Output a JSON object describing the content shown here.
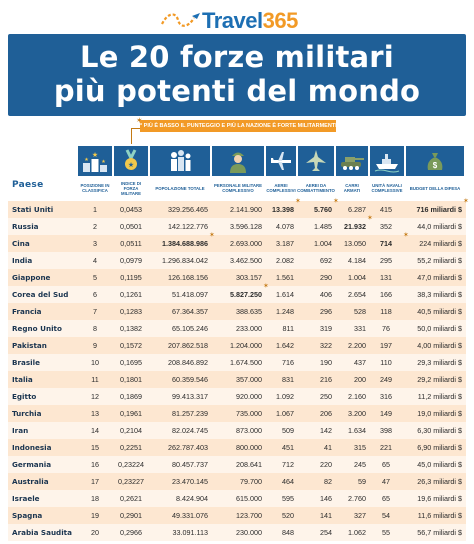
{
  "brand": {
    "name": "Travel",
    "number": "365"
  },
  "title": {
    "line1": "Le 20 forze militari",
    "line2": "più potenti del mondo"
  },
  "note": "* PIÙ È BASSO IL PUNTEGGIO E PIÙ LA NAZIONE È FORTE MILITARMENTE",
  "paese_label": "Paese",
  "icons": [
    "podium-icon",
    "medal-icon",
    "population-icon",
    "soldier-icon",
    "airplane-icon",
    "fighter-jet-icon",
    "tank-icon",
    "ship-icon",
    "money-bag-icon"
  ],
  "columns": [
    "Posizione in classifica",
    "Indice di forza militare",
    "Popolazione totale",
    "Personale militare complessivo",
    "Aerei complessivi",
    "Aerei da combattimento",
    "Carri armati",
    "Unità navali complessive",
    "Budget della difesa"
  ],
  "colors": {
    "primary": "#1f5f97",
    "accent": "#f29a26",
    "row_odd": "#fde7d1",
    "row_even": "#fef4ea"
  },
  "rows": [
    {
      "country": "Stati Uniti",
      "rank": "1",
      "index": "0,0453",
      "population": "329.256.465",
      "personnel": "2.141.900",
      "aircraft": "13.398",
      "combat": "5.760",
      "tanks": "6.287",
      "naval": "415",
      "budget": "716 miliardi $"
    },
    {
      "country": "Russia",
      "rank": "2",
      "index": "0,0501",
      "population": "142.122.776",
      "personnel": "3.596.128",
      "aircraft": "4.078",
      "combat": "1.485",
      "tanks": "21.932",
      "naval": "352",
      "budget": "44,0 miliardi $"
    },
    {
      "country": "Cina",
      "rank": "3",
      "index": "0,0511",
      "population": "1.384.688.986",
      "personnel": "2.693.000",
      "aircraft": "3.187",
      "combat": "1.004",
      "tanks": "13.050",
      "naval": "714",
      "budget": "224 miliardi $"
    },
    {
      "country": "India",
      "rank": "4",
      "index": "0,0979",
      "population": "1.296.834.042",
      "personnel": "3.462.500",
      "aircraft": "2.082",
      "combat": "692",
      "tanks": "4.184",
      "naval": "295",
      "budget": "55,2 miliardi $"
    },
    {
      "country": "Giappone",
      "rank": "5",
      "index": "0,1195",
      "population": "126.168.156",
      "personnel": "303.157",
      "aircraft": "1.561",
      "combat": "290",
      "tanks": "1.004",
      "naval": "131",
      "budget": "47,0 miliardi $"
    },
    {
      "country": "Corea del Sud",
      "rank": "6",
      "index": "0,1261",
      "population": "51.418.097",
      "personnel": "5.827.250",
      "aircraft": "1.614",
      "combat": "406",
      "tanks": "2.654",
      "naval": "166",
      "budget": "38,3 miliardi $"
    },
    {
      "country": "Francia",
      "rank": "7",
      "index": "0,1283",
      "population": "67.364.357",
      "personnel": "388.635",
      "aircraft": "1.248",
      "combat": "296",
      "tanks": "528",
      "naval": "118",
      "budget": "40,5 miliardi $"
    },
    {
      "country": "Regno Unito",
      "rank": "8",
      "index": "0,1382",
      "population": "65.105.246",
      "personnel": "233.000",
      "aircraft": "811",
      "combat": "319",
      "tanks": "331",
      "naval": "76",
      "budget": "50,0 miliardi $"
    },
    {
      "country": "Pakistan",
      "rank": "9",
      "index": "0,1572",
      "population": "207.862.518",
      "personnel": "1.204.000",
      "aircraft": "1.642",
      "combat": "322",
      "tanks": "2.200",
      "naval": "197",
      "budget": "4,00 miliardi $"
    },
    {
      "country": "Brasile",
      "rank": "10",
      "index": "0,1695",
      "population": "208.846.892",
      "personnel": "1.674.500",
      "aircraft": "716",
      "combat": "190",
      "tanks": "437",
      "naval": "110",
      "budget": "29,3 miliardi $"
    },
    {
      "country": "Italia",
      "rank": "11",
      "index": "0,1801",
      "population": "60.359.546",
      "personnel": "357.000",
      "aircraft": "831",
      "combat": "216",
      "tanks": "200",
      "naval": "249",
      "budget": "29,2 miliardi $"
    },
    {
      "country": "Egitto",
      "rank": "12",
      "index": "0,1869",
      "population": "99.413.317",
      "personnel": "920.000",
      "aircraft": "1.092",
      "combat": "250",
      "tanks": "2.160",
      "naval": "316",
      "budget": "11,2 miliardi $"
    },
    {
      "country": "Turchia",
      "rank": "13",
      "index": "0,1961",
      "population": "81.257.239",
      "personnel": "735.000",
      "aircraft": "1.067",
      "combat": "206",
      "tanks": "3.200",
      "naval": "149",
      "budget": "19,0 miliardi $"
    },
    {
      "country": "Iran",
      "rank": "14",
      "index": "0,2104",
      "population": "82.024.745",
      "personnel": "873.000",
      "aircraft": "509",
      "combat": "142",
      "tanks": "1.634",
      "naval": "398",
      "budget": "6,30 miliardi $"
    },
    {
      "country": "Indonesia",
      "rank": "15",
      "index": "0,2251",
      "population": "262.787.403",
      "personnel": "800.000",
      "aircraft": "451",
      "combat": "41",
      "tanks": "315",
      "naval": "221",
      "budget": "6,90 miliardi $"
    },
    {
      "country": "Germania",
      "rank": "16",
      "index": "0,23224",
      "population": "80.457.737",
      "personnel": "208.641",
      "aircraft": "712",
      "combat": "220",
      "tanks": "245",
      "naval": "65",
      "budget": "45,0 miliardi $"
    },
    {
      "country": "Australia",
      "rank": "17",
      "index": "0,23227",
      "population": "23.470.145",
      "personnel": "79.700",
      "aircraft": "464",
      "combat": "82",
      "tanks": "59",
      "naval": "47",
      "budget": "26,3 miliardi $"
    },
    {
      "country": "Israele",
      "rank": "18",
      "index": "0,2621",
      "population": "8.424.904",
      "personnel": "615.000",
      "aircraft": "595",
      "combat": "146",
      "tanks": "2.760",
      "naval": "65",
      "budget": "19,6 miliardi $"
    },
    {
      "country": "Spagna",
      "rank": "19",
      "index": "0,2901",
      "population": "49.331.076",
      "personnel": "123.700",
      "aircraft": "520",
      "combat": "141",
      "tanks": "327",
      "naval": "54",
      "budget": "11,6 miliardi $"
    },
    {
      "country": "Arabia Saudita",
      "rank": "20",
      "index": "0,2966",
      "population": "33.091.113",
      "personnel": "230.000",
      "aircraft": "848",
      "combat": "254",
      "tanks": "1.062",
      "naval": "55",
      "budget": "56,7 miliardi $"
    }
  ]
}
